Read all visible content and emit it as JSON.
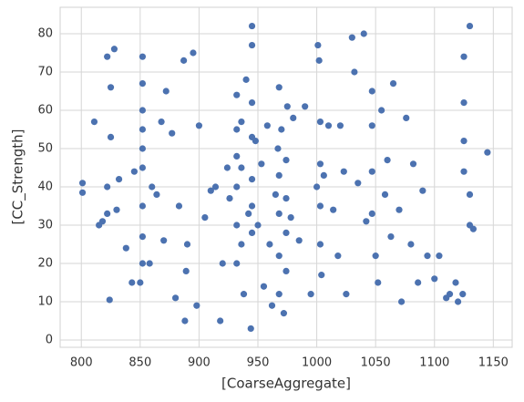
{
  "chart_data": {
    "type": "scatter",
    "x_label": "[CoarseAggregate]",
    "y_label": "[CC_Strength]",
    "color": "#4c72b0",
    "grid": true,
    "xlim": [
      782,
      1166
    ],
    "ylim": [
      -1.9,
      86.9
    ],
    "xticks": [
      800,
      850,
      900,
      950,
      1000,
      1050,
      1100,
      1150
    ],
    "yticks": [
      0,
      10,
      20,
      30,
      40,
      50,
      60,
      70,
      80
    ],
    "x": [
      801,
      801,
      811,
      815,
      818,
      822,
      822,
      822,
      824,
      825,
      825,
      828,
      830,
      832,
      838,
      843,
      845,
      850,
      852,
      852,
      852,
      852,
      852,
      852,
      852,
      852,
      852,
      858,
      860,
      864,
      868,
      870,
      872,
      877,
      880,
      883,
      887,
      888,
      889,
      890,
      895,
      898,
      900,
      905,
      910,
      914,
      918,
      920,
      924,
      926,
      932,
      932,
      932,
      932,
      932,
      932,
      936,
      936,
      936,
      938,
      940,
      942,
      944,
      945,
      945,
      945,
      945,
      945,
      945,
      945,
      948,
      950,
      953,
      955,
      958,
      960,
      962,
      965,
      967,
      968,
      968,
      968,
      968,
      968,
      970,
      972,
      974,
      974,
      974,
      974,
      975,
      978,
      980,
      985,
      990,
      995,
      1000,
      1001,
      1002,
      1003,
      1003,
      1003,
      1003,
      1004,
      1006,
      1010,
      1014,
      1018,
      1020,
      1023,
      1025,
      1030,
      1032,
      1035,
      1040,
      1042,
      1047,
      1047,
      1047,
      1047,
      1050,
      1052,
      1055,
      1058,
      1060,
      1063,
      1065,
      1070,
      1072,
      1076,
      1080,
      1082,
      1086,
      1090,
      1094,
      1100,
      1104,
      1110,
      1113,
      1118,
      1120,
      1124,
      1125,
      1125,
      1125,
      1125,
      1130,
      1130,
      1130,
      1133,
      1145
    ],
    "y": [
      41,
      38.5,
      57,
      30,
      31,
      74,
      40,
      33,
      10.5,
      66,
      53,
      76,
      34,
      42,
      24,
      15,
      44,
      15,
      74,
      67,
      60,
      50,
      45,
      35,
      27,
      20,
      55,
      20,
      40,
      38,
      57,
      26,
      65,
      54,
      11,
      35,
      73,
      5,
      18,
      25,
      75,
      9,
      56,
      32,
      39,
      40,
      5,
      20,
      45,
      37,
      64,
      55,
      48,
      40,
      30,
      20,
      57,
      45,
      25,
      12,
      68,
      33,
      3,
      82,
      77,
      62,
      53,
      42,
      35,
      28,
      52,
      30,
      46,
      14,
      56,
      25,
      9,
      38,
      50,
      66,
      43,
      33,
      22,
      12,
      55,
      7,
      47,
      37,
      28,
      18,
      61,
      32,
      58,
      26,
      61,
      12,
      40,
      77,
      73,
      57,
      46,
      35,
      25,
      17,
      43,
      56,
      34,
      22,
      56,
      44,
      12,
      79,
      70,
      41,
      80,
      31,
      65,
      56,
      44,
      33,
      22,
      15,
      60,
      38,
      47,
      27,
      67,
      34,
      10,
      58,
      25,
      46,
      15,
      39,
      22,
      16,
      22,
      11,
      12,
      15,
      10,
      12,
      74,
      62,
      52,
      44,
      38,
      30,
      82,
      29,
      49
    ]
  }
}
